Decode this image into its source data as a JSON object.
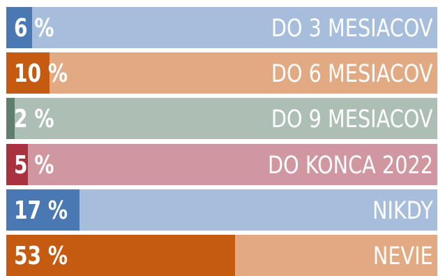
{
  "chart_data": {
    "type": "bar",
    "orientation": "horizontal",
    "stacked_to": 100,
    "categories": [
      "DO 3 MESIACOV",
      "DO 6 MESIACOV",
      "DO 9 MESIACOV",
      "DO KONCA 2022",
      "NIKDY",
      "NEVIE"
    ],
    "values": [
      6,
      10,
      2,
      5,
      17,
      53
    ],
    "value_labels": [
      "6 %",
      "10 %",
      "2 %",
      "5 %",
      "17 %",
      "53 %"
    ],
    "unit": "%",
    "xlim": [
      0,
      100
    ],
    "colors": {
      "fill": [
        "#4a78b3",
        "#c55a11",
        "#5f7e70",
        "#a8323e",
        "#4a78b3",
        "#c55a11"
      ],
      "track": [
        "#a6bddb",
        "#e1aa82",
        "#adbfb4",
        "#d197a0",
        "#a6bddb",
        "#e1aa82"
      ]
    }
  }
}
